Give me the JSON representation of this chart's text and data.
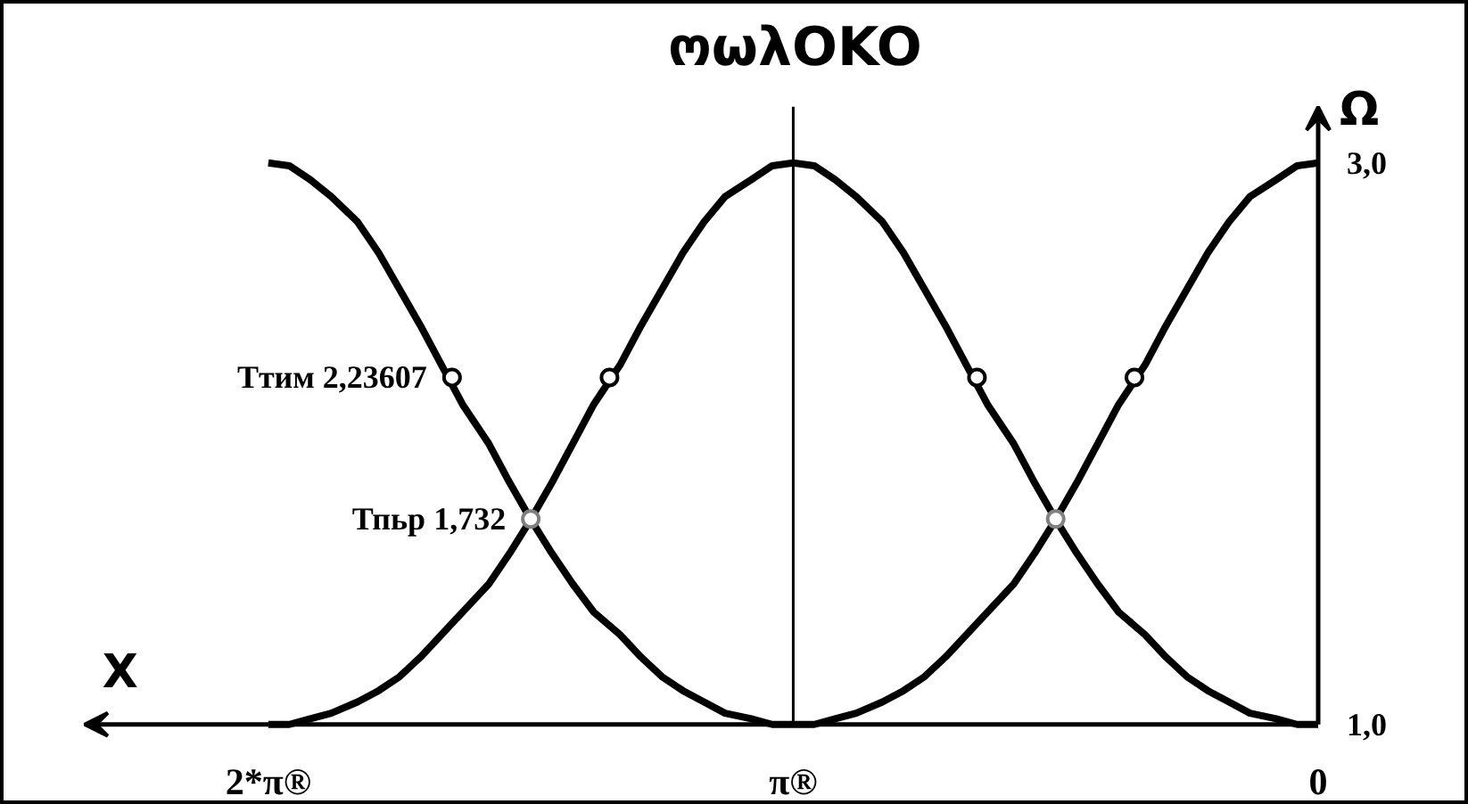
{
  "chart_data": {
    "type": "line",
    "title": "ოωλOKO",
    "xlabel": "X",
    "ylabel": "Ω",
    "x": [
      0,
      0.04,
      0.08,
      0.13,
      0.17,
      0.21,
      0.25,
      0.29,
      0.33,
      0.38,
      0.42,
      0.46,
      0.5,
      0.54,
      0.58,
      0.63,
      0.67,
      0.71,
      0.75,
      0.79,
      0.83,
      0.88,
      0.92,
      0.96,
      1.0,
      1.04,
      1.08,
      1.13,
      1.17,
      1.21,
      1.25,
      1.29,
      1.33,
      1.38,
      1.42,
      1.46,
      1.5,
      1.54,
      1.58,
      1.63,
      1.67,
      1.71,
      1.75,
      1.79,
      1.83,
      1.88,
      1.92,
      1.96,
      2.0
    ],
    "xlim": [
      2.35,
      0
    ],
    "xticks": [
      {
        "value": 2,
        "label": "2*π®"
      },
      {
        "value": 1,
        "label": "π®"
      },
      0
    ],
    "ylim": [
      1,
      3.2
    ],
    "yticks": [
      {
        "value": 3,
        "label": "3,0"
      },
      {
        "value": 1,
        "label": "1,0"
      }
    ],
    "series": [
      {
        "color": "#000000",
        "values": [
          3.0,
          2.99,
          2.94,
          2.88,
          2.79,
          2.68,
          2.55,
          2.42,
          2.28,
          2.14,
          2.0,
          1.86,
          1.73,
          1.61,
          1.5,
          1.4,
          1.32,
          1.24,
          1.17,
          1.12,
          1.08,
          1.04,
          1.02,
          1.0,
          1.0,
          1.0,
          1.02,
          1.04,
          1.08,
          1.12,
          1.17,
          1.24,
          1.32,
          1.4,
          1.5,
          1.61,
          1.73,
          1.86,
          2.0,
          2.14,
          2.28,
          2.42,
          2.55,
          2.68,
          2.79,
          2.88,
          2.94,
          2.99,
          3.0
        ]
      },
      {
        "color": "#000000",
        "values": [
          1.0,
          1.0,
          1.02,
          1.04,
          1.08,
          1.12,
          1.17,
          1.24,
          1.32,
          1.4,
          1.5,
          1.61,
          1.73,
          1.86,
          2.0,
          2.14,
          2.28,
          2.42,
          2.55,
          2.68,
          2.79,
          2.88,
          2.94,
          2.99,
          3.0,
          2.99,
          2.94,
          2.88,
          2.79,
          2.68,
          2.55,
          2.42,
          2.28,
          2.14,
          2.0,
          1.86,
          1.73,
          1.61,
          1.5,
          1.4,
          1.32,
          1.24,
          1.17,
          1.12,
          1.08,
          1.04,
          1.02,
          1.0,
          1.0
        ]
      },
      {
        "type": "scatter",
        "color": "#000000",
        "marker": "circle",
        "x": [
          0.35,
          0.65,
          1.35,
          1.65
        ],
        "values": [
          2.23607,
          2.23607,
          2.23607,
          2.23607
        ],
        "value_labels": [
          null,
          null,
          null,
          "Ттим 2,23607"
        ]
      },
      {
        "type": "scatter",
        "color": "#808080",
        "marker": "circle",
        "x": [
          0.5,
          1.5
        ],
        "values": [
          1.732,
          1.732
        ],
        "value_labels": [
          null,
          "Тпьр 1,732"
        ]
      }
    ],
    "ref_lines": [
      {
        "axis": "x",
        "value": 1
      }
    ]
  }
}
